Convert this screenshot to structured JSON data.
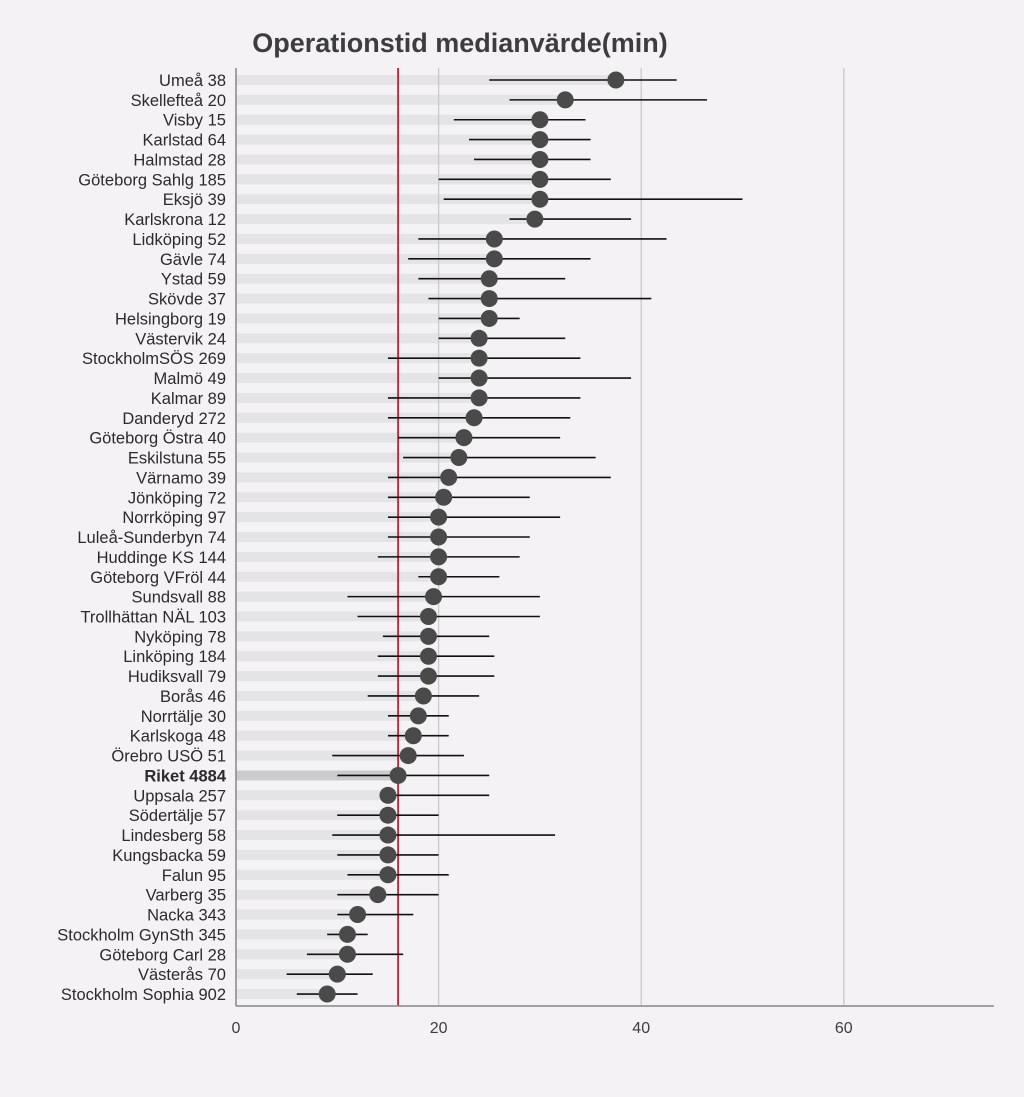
{
  "chart_data": {
    "type": "dot-interval",
    "title": "Operationstid medianvärde(min)",
    "xlabel": "",
    "ylabel": "",
    "xlim": [
      0,
      75
    ],
    "xticks": [
      0,
      20,
      40,
      60
    ],
    "grid": true,
    "reference_line": {
      "value": 16,
      "color": "#c8202f"
    },
    "colors": {
      "point": "#4a4a4a",
      "whisker": "#111111",
      "band": "#e4e3e6",
      "band_highlight": "#cbcacd",
      "grid": "#c9c9c9",
      "axis": "#888888",
      "background": "#f4f2f5"
    },
    "highlight": "Riket 4884",
    "rows": [
      {
        "label": "Umeå 38",
        "median": 37.5,
        "low": 25,
        "high": 43.5
      },
      {
        "label": "Skellefteå 20",
        "median": 32.5,
        "low": 27,
        "high": 46.5
      },
      {
        "label": "Visby 15",
        "median": 30,
        "low": 21.5,
        "high": 34.5
      },
      {
        "label": "Karlstad 64",
        "median": 30,
        "low": 23,
        "high": 35
      },
      {
        "label": "Halmstad 28",
        "median": 30,
        "low": 23.5,
        "high": 35
      },
      {
        "label": "Göteborg Sahlg 185",
        "median": 30,
        "low": 20,
        "high": 37
      },
      {
        "label": "Eksjö 39",
        "median": 30,
        "low": 20.5,
        "high": 50
      },
      {
        "label": "Karlskrona 12",
        "median": 29.5,
        "low": 27,
        "high": 39
      },
      {
        "label": "Lidköping 52",
        "median": 25.5,
        "low": 18,
        "high": 42.5
      },
      {
        "label": "Gävle 74",
        "median": 25.5,
        "low": 17,
        "high": 35
      },
      {
        "label": "Ystad 59",
        "median": 25,
        "low": 18,
        "high": 32.5
      },
      {
        "label": "Skövde 37",
        "median": 25,
        "low": 19,
        "high": 41
      },
      {
        "label": "Helsingborg 19",
        "median": 25,
        "low": 20,
        "high": 28
      },
      {
        "label": "Västervik 24",
        "median": 24,
        "low": 20,
        "high": 32.5
      },
      {
        "label": "StockholmSÖS 269",
        "median": 24,
        "low": 15,
        "high": 34
      },
      {
        "label": "Malmö 49",
        "median": 24,
        "low": 20,
        "high": 39
      },
      {
        "label": "Kalmar 89",
        "median": 24,
        "low": 15,
        "high": 34
      },
      {
        "label": "Danderyd 272",
        "median": 23.5,
        "low": 15,
        "high": 33
      },
      {
        "label": "Göteborg Östra 40",
        "median": 22.5,
        "low": 16,
        "high": 32
      },
      {
        "label": "Eskilstuna 55",
        "median": 22,
        "low": 16.5,
        "high": 35.5
      },
      {
        "label": "Värnamo 39",
        "median": 21,
        "low": 15,
        "high": 37
      },
      {
        "label": "Jönköping 72",
        "median": 20.5,
        "low": 15,
        "high": 29
      },
      {
        "label": "Norrköping 97",
        "median": 20,
        "low": 15,
        "high": 32
      },
      {
        "label": "Luleå-Sunderbyn 74",
        "median": 20,
        "low": 15,
        "high": 29
      },
      {
        "label": "Huddinge KS 144",
        "median": 20,
        "low": 14,
        "high": 28
      },
      {
        "label": "Göteborg VFröl 44",
        "median": 20,
        "low": 18,
        "high": 26
      },
      {
        "label": "Sundsvall 88",
        "median": 19.5,
        "low": 11,
        "high": 30
      },
      {
        "label": "Trollhättan NÄL 103",
        "median": 19,
        "low": 12,
        "high": 30
      },
      {
        "label": "Nyköping 78",
        "median": 19,
        "low": 14.5,
        "high": 25
      },
      {
        "label": "Linköping 184",
        "median": 19,
        "low": 14,
        "high": 25.5
      },
      {
        "label": "Hudiksvall 79",
        "median": 19,
        "low": 14,
        "high": 25.5
      },
      {
        "label": "Borås 46",
        "median": 18.5,
        "low": 13,
        "high": 24
      },
      {
        "label": "Norrtälje 30",
        "median": 18,
        "low": 15,
        "high": 21
      },
      {
        "label": "Karlskoga 48",
        "median": 17.5,
        "low": 15,
        "high": 21
      },
      {
        "label": "Örebro USÖ 51",
        "median": 17,
        "low": 9.5,
        "high": 22.5
      },
      {
        "label": "Riket 4884",
        "median": 16,
        "low": 10,
        "high": 25
      },
      {
        "label": "Uppsala 257",
        "median": 15,
        "low": 15,
        "high": 25
      },
      {
        "label": "Södertälje 57",
        "median": 15,
        "low": 10,
        "high": 20
      },
      {
        "label": "Lindesberg 58",
        "median": 15,
        "low": 9.5,
        "high": 31.5
      },
      {
        "label": "Kungsbacka 59",
        "median": 15,
        "low": 10,
        "high": 20
      },
      {
        "label": "Falun 95",
        "median": 15,
        "low": 11,
        "high": 21
      },
      {
        "label": "Varberg 35",
        "median": 14,
        "low": 10,
        "high": 20
      },
      {
        "label": "Nacka 343",
        "median": 12,
        "low": 10,
        "high": 17.5
      },
      {
        "label": "Stockholm GynSth 345",
        "median": 11,
        "low": 9,
        "high": 13
      },
      {
        "label": "Göteborg Carl 28",
        "median": 11,
        "low": 7,
        "high": 16.5
      },
      {
        "label": "Västerås 70",
        "median": 10,
        "low": 5,
        "high": 13.5
      },
      {
        "label": "Stockholm Sophia 902",
        "median": 9,
        "low": 6,
        "high": 12
      }
    ]
  }
}
